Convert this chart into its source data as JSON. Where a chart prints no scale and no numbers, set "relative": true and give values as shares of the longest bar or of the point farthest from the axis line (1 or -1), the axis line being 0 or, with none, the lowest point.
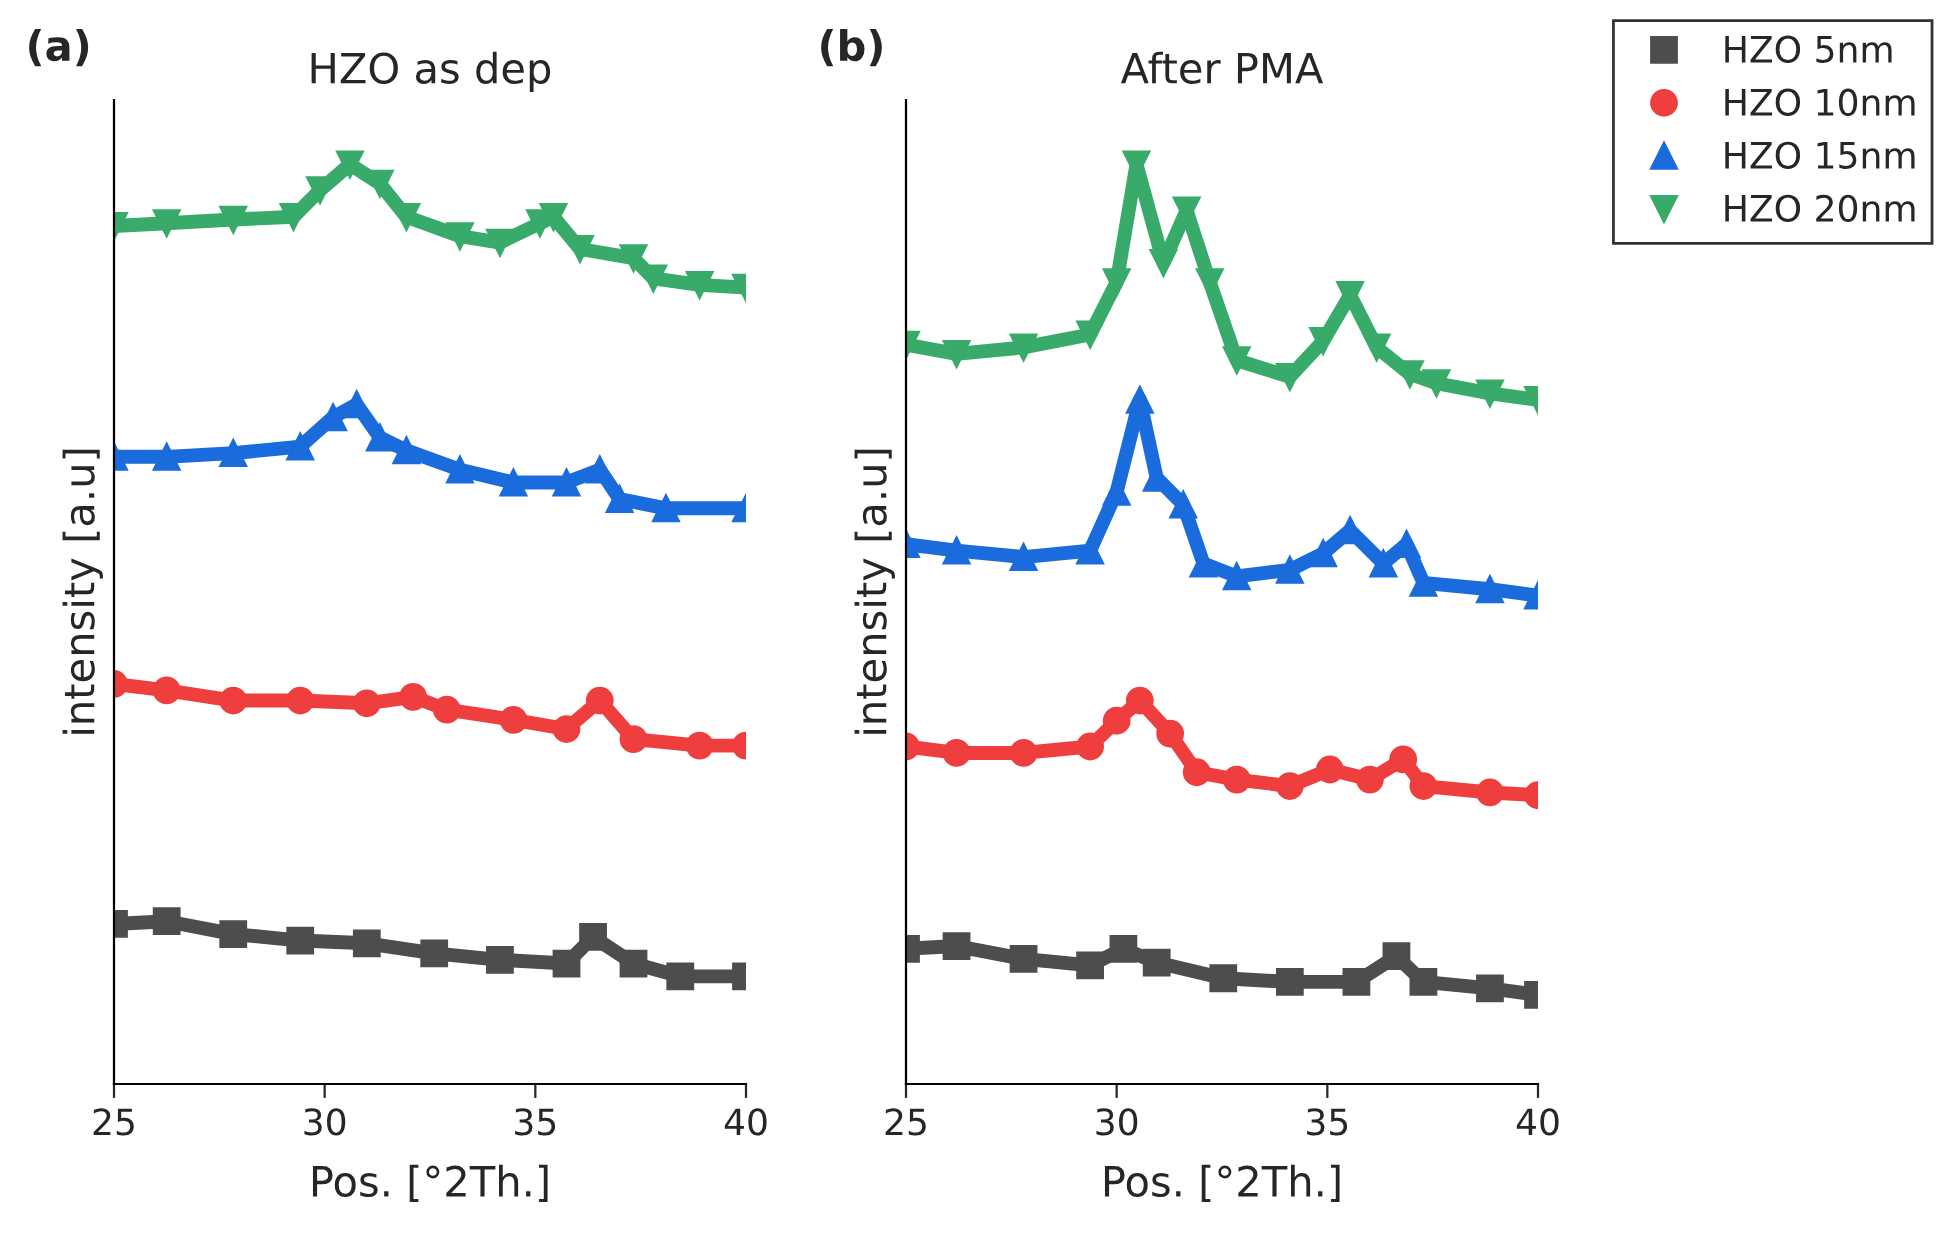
{
  "chart_data": [
    {
      "type": "line",
      "title": "HZO as dep",
      "xlabel": "Pos. [°2Th.]",
      "ylabel": "intensity [a.u]",
      "annotations": [
        "(a)"
      ],
      "relative": true,
      "xlim": [
        25,
        40
      ],
      "xticks": [
        25,
        30,
        35,
        40
      ],
      "tick_labels": "x",
      "grid": false,
      "legend": false,
      "series": [
        {
          "color": "#4d4d4d",
          "marker": "square",
          "x": [
            25,
            26.25,
            27.83,
            29.42,
            31.0,
            32.6,
            34.16,
            35.74,
            36.37,
            37.33,
            38.44,
            40
          ],
          "values": [
            0.174,
            0.177,
            0.163,
            0.156,
            0.153,
            0.142,
            0.135,
            0.131,
            0.16,
            0.131,
            0.117,
            0.117
          ]
        },
        {
          "color": "#ef3e3e",
          "marker": "circle",
          "x": [
            25,
            26.25,
            27.83,
            29.42,
            31.0,
            32.1,
            32.9,
            34.48,
            35.74,
            36.53,
            37.33,
            38.9,
            40
          ],
          "values": [
            0.435,
            0.428,
            0.417,
            0.417,
            0.414,
            0.421,
            0.407,
            0.396,
            0.386,
            0.417,
            0.375,
            0.368,
            0.368
          ]
        },
        {
          "color": "#1a6bdb",
          "marker": "triangle",
          "x": [
            25,
            26.25,
            27.83,
            29.42,
            30.2,
            30.76,
            31.31,
            31.94,
            33.21,
            34.48,
            35.74,
            36.53,
            37.0,
            38.1,
            40
          ],
          "values": [
            0.682,
            0.682,
            0.686,
            0.693,
            0.725,
            0.739,
            0.703,
            0.689,
            0.668,
            0.654,
            0.654,
            0.668,
            0.636,
            0.626,
            0.626
          ]
        },
        {
          "color": "#38ab6a",
          "marker": "triangle_down",
          "x": [
            25,
            26.25,
            27.83,
            29.26,
            29.89,
            30.6,
            31.31,
            31.94,
            33.21,
            34.16,
            35.11,
            35.43,
            36.06,
            37.33,
            37.8,
            38.9,
            40
          ],
          "values": [
            0.933,
            0.936,
            0.94,
            0.943,
            0.972,
            1.0,
            0.979,
            0.943,
            0.922,
            0.915,
            0.936,
            0.943,
            0.908,
            0.898,
            0.876,
            0.869,
            0.866
          ]
        }
      ]
    },
    {
      "type": "line",
      "title": "After PMA",
      "xlabel": "Pos. [°2Th.]",
      "ylabel": "intensity [a.u]",
      "annotations": [
        "(b)"
      ],
      "relative": true,
      "xlim": [
        25,
        40
      ],
      "xticks": [
        25,
        30,
        35,
        40
      ],
      "tick_labels": "x",
      "grid": false,
      "legend": "top right",
      "series": [
        {
          "name": "HZO 5nm",
          "color": "#4d4d4d",
          "marker": "square",
          "x": [
            25,
            26.2,
            27.79,
            29.37,
            30.16,
            30.95,
            32.53,
            34.11,
            35.69,
            36.64,
            37.28,
            38.86,
            40
          ],
          "values": [
            0.147,
            0.15,
            0.136,
            0.129,
            0.147,
            0.132,
            0.115,
            0.111,
            0.111,
            0.139,
            0.111,
            0.104,
            0.097
          ]
        },
        {
          "name": "HZO 10nm",
          "color": "#ef3e3e",
          "marker": "circle",
          "x": [
            25,
            26.2,
            27.79,
            29.37,
            30.0,
            30.55,
            31.27,
            31.9,
            32.85,
            34.11,
            35.06,
            36.01,
            36.8,
            37.28,
            38.86,
            40
          ],
          "values": [
            0.367,
            0.36,
            0.36,
            0.367,
            0.395,
            0.417,
            0.381,
            0.339,
            0.331,
            0.324,
            0.342,
            0.331,
            0.353,
            0.324,
            0.317,
            0.314
          ]
        },
        {
          "name": "HZO 15nm",
          "color": "#1a6bdb",
          "marker": "triangle",
          "x": [
            25,
            26.2,
            27.79,
            29.37,
            30.0,
            30.55,
            30.95,
            31.58,
            32.06,
            32.85,
            34.11,
            34.9,
            35.54,
            36.33,
            36.88,
            37.28,
            38.86,
            40
          ],
          "values": [
            0.587,
            0.58,
            0.573,
            0.58,
            0.644,
            0.744,
            0.659,
            0.63,
            0.566,
            0.552,
            0.559,
            0.577,
            0.602,
            0.566,
            0.587,
            0.545,
            0.538,
            0.531
          ]
        },
        {
          "name": "HZO 20nm",
          "color": "#38ab6a",
          "marker": "triangle_down",
          "x": [
            25,
            26.2,
            27.79,
            29.37,
            30.0,
            30.47,
            31.11,
            31.66,
            32.21,
            32.85,
            34.11,
            34.9,
            35.54,
            36.17,
            36.96,
            37.59,
            38.86,
            40
          ],
          "values": [
            0.804,
            0.794,
            0.801,
            0.815,
            0.872,
            1.0,
            0.893,
            0.95,
            0.872,
            0.787,
            0.769,
            0.808,
            0.858,
            0.801,
            0.772,
            0.762,
            0.751,
            0.744
          ]
        }
      ]
    }
  ]
}
